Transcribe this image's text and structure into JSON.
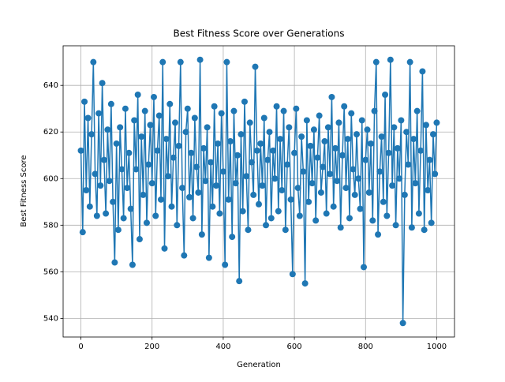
{
  "chart_data": {
    "type": "line",
    "title": "Best Fitness Score over Generations",
    "x_label": "Generation",
    "y_label": "Best Fitness Score",
    "color": "#1f77b4",
    "grid": true,
    "markers": true,
    "xlim": [
      -50,
      1050
    ],
    "xticks": [
      0,
      200,
      400,
      600,
      800,
      1000
    ],
    "ylim": [
      532,
      657
    ],
    "yticks": [
      540,
      560,
      580,
      600,
      620,
      640
    ],
    "x": [
      0,
      5,
      10,
      15,
      20,
      25,
      30,
      35,
      40,
      45,
      50,
      55,
      60,
      65,
      70,
      75,
      80,
      85,
      90,
      95,
      100,
      105,
      110,
      115,
      120,
      125,
      130,
      135,
      140,
      145,
      150,
      155,
      160,
      165,
      170,
      175,
      180,
      185,
      190,
      195,
      200,
      205,
      210,
      215,
      220,
      225,
      230,
      235,
      240,
      245,
      250,
      255,
      260,
      265,
      270,
      275,
      280,
      285,
      290,
      295,
      300,
      305,
      310,
      315,
      320,
      325,
      330,
      335,
      340,
      345,
      350,
      355,
      360,
      365,
      370,
      375,
      380,
      385,
      390,
      395,
      400,
      405,
      410,
      415,
      420,
      425,
      430,
      435,
      440,
      445,
      450,
      455,
      460,
      465,
      470,
      475,
      480,
      485,
      490,
      495,
      500,
      505,
      510,
      515,
      520,
      525,
      530,
      535,
      540,
      545,
      550,
      555,
      560,
      565,
      570,
      575,
      580,
      585,
      590,
      595,
      600,
      605,
      610,
      615,
      620,
      625,
      630,
      635,
      640,
      645,
      650,
      655,
      660,
      665,
      670,
      675,
      680,
      685,
      690,
      695,
      700,
      705,
      710,
      715,
      720,
      725,
      730,
      735,
      740,
      745,
      750,
      755,
      760,
      765,
      770,
      775,
      780,
      785,
      790,
      795,
      800,
      805,
      810,
      815,
      820,
      825,
      830,
      835,
      840,
      845,
      850,
      855,
      860,
      865,
      870,
      875,
      880,
      885,
      890,
      895,
      900,
      905,
      910,
      915,
      920,
      925,
      930,
      935,
      940,
      945,
      950,
      955,
      960,
      965,
      970,
      975,
      980,
      985,
      990,
      995,
      1000
    ],
    "values": [
      612,
      577,
      633,
      595,
      626,
      588,
      619,
      650,
      602,
      584,
      628,
      597,
      641,
      608,
      585,
      621,
      599,
      632,
      590,
      564,
      615,
      578,
      622,
      604,
      583,
      630,
      596,
      611,
      587,
      563,
      625,
      604,
      636,
      574,
      618,
      593,
      629,
      581,
      606,
      623,
      598,
      635,
      584,
      612,
      627,
      591,
      650,
      570,
      617,
      601,
      632,
      588,
      609,
      624,
      580,
      614,
      650,
      596,
      567,
      620,
      630,
      592,
      611,
      583,
      626,
      605,
      594,
      651,
      576,
      613,
      599,
      622,
      566,
      607,
      588,
      631,
      597,
      615,
      585,
      628,
      603,
      563,
      650,
      591,
      616,
      575,
      629,
      598,
      610,
      556,
      619,
      586,
      633,
      601,
      578,
      624,
      607,
      593,
      648,
      612,
      589,
      615,
      597,
      626,
      580,
      608,
      620,
      583,
      612,
      600,
      631,
      586,
      617,
      595,
      629,
      578,
      606,
      622,
      591,
      559,
      611,
      630,
      596,
      584,
      618,
      603,
      555,
      625,
      590,
      614,
      598,
      621,
      582,
      609,
      627,
      594,
      605,
      616,
      585,
      622,
      602,
      635,
      588,
      613,
      599,
      624,
      579,
      610,
      631,
      596,
      617,
      583,
      628,
      604,
      593,
      619,
      600,
      587,
      625,
      562,
      608,
      621,
      594,
      615,
      582,
      629,
      650,
      576,
      603,
      618,
      590,
      636,
      584,
      611,
      651,
      597,
      622,
      580,
      613,
      600,
      625,
      538,
      593,
      620,
      606,
      650,
      579,
      617,
      598,
      629,
      585,
      612,
      646,
      578,
      623,
      595,
      608,
      581,
      619,
      602,
      624
    ]
  }
}
